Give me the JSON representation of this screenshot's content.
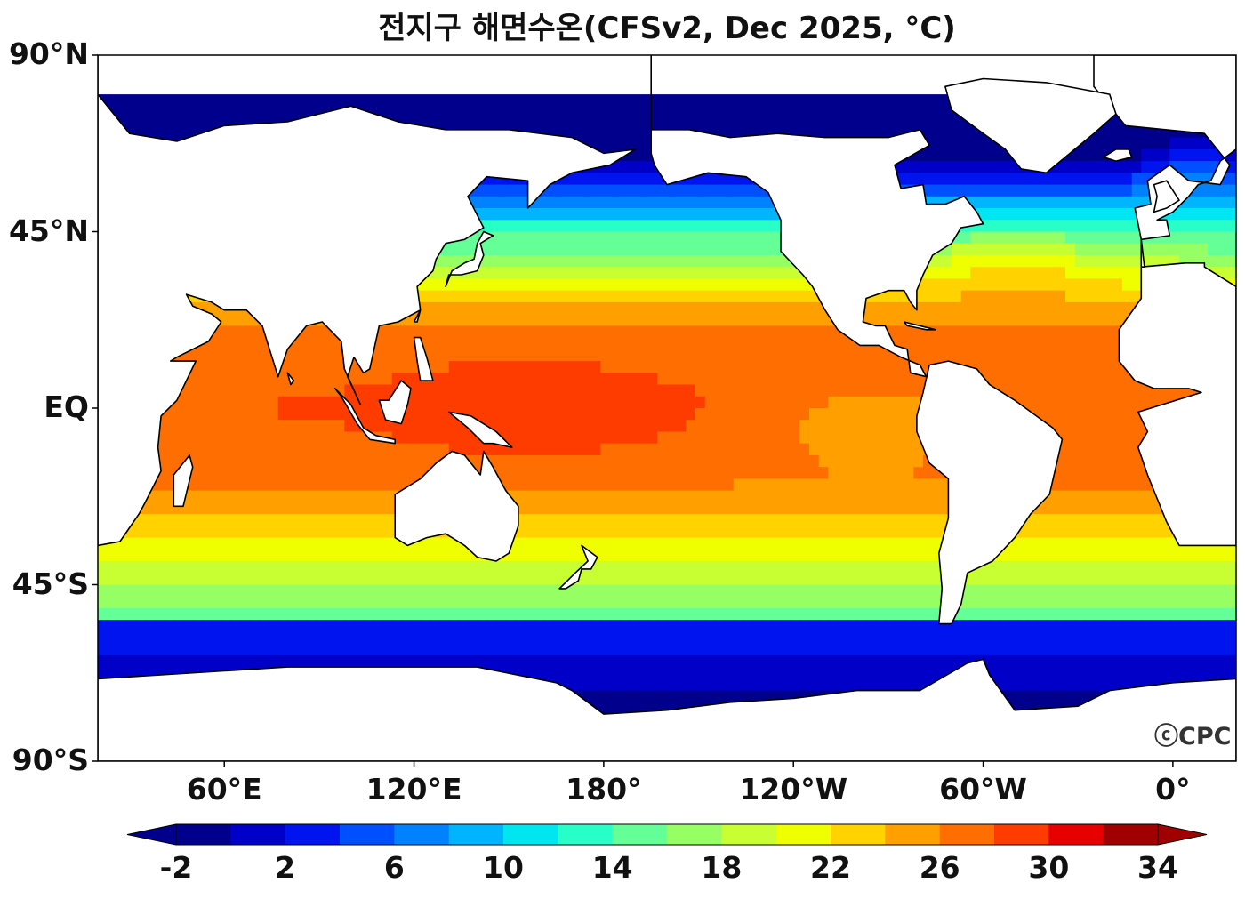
{
  "title": "전지구 해면수온(CFSv2, Dec 2025, °C)",
  "logo_text": "ⓒCPC",
  "lat_labels": [
    "90°N",
    "45°N",
    "EQ",
    "45°S",
    "90°S"
  ],
  "lon_labels": [
    "60°E",
    "120°E",
    "180°",
    "120°W",
    "60°W",
    "0°"
  ],
  "colorbar": {
    "tick_labels": [
      "-2",
      "2",
      "6",
      "10",
      "14",
      "18",
      "22",
      "26",
      "30",
      "34"
    ],
    "colors": [
      "#00008c",
      "#0000c8",
      "#0014f0",
      "#0050ff",
      "#0082ff",
      "#00b4ff",
      "#00e6f0",
      "#28ffc8",
      "#64ff96",
      "#96ff64",
      "#c8ff32",
      "#f0ff00",
      "#ffd200",
      "#ffa000",
      "#ff6e00",
      "#ff3c00",
      "#e60000",
      "#a00000"
    ],
    "under_color": "#00008c",
    "over_color": "#a00000"
  },
  "chart_data": {
    "type": "heatmap",
    "title": "전지구 해면수온(CFSv2, Dec 2025, °C)",
    "variable": "sea surface temperature",
    "units": "°C",
    "x_axis": {
      "ticks": [
        "60°E",
        "120°E",
        "180°",
        "120°W",
        "60°W",
        "0°"
      ],
      "range_lon": [
        20,
        380
      ]
    },
    "y_axis": {
      "ticks": [
        "90°N",
        "45°N",
        "EQ",
        "45°S",
        "90°S"
      ],
      "range_lat": [
        -90,
        90
      ]
    },
    "color_levels": [
      -2,
      0,
      2,
      4,
      6,
      8,
      10,
      12,
      14,
      16,
      18,
      20,
      22,
      24,
      26,
      28,
      30,
      32,
      34
    ],
    "regional_values_approx": {
      "western_pacific_warm_pool": 30,
      "eastern_equatorial_pacific": 24,
      "indian_ocean_tropics": 29,
      "north_pacific_mid_latitude": 14,
      "north_atlantic_mid_latitude": 18,
      "southern_ocean_50S": 6,
      "southern_ocean_60S": 0
    }
  }
}
